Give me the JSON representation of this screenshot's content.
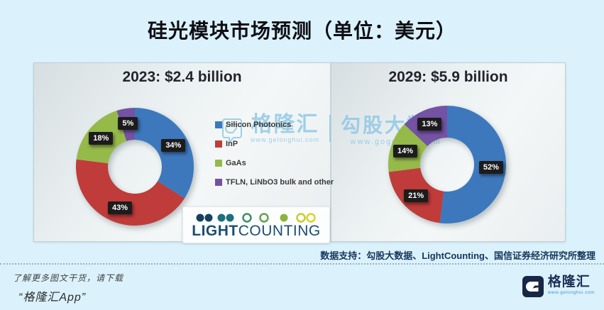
{
  "page": {
    "title": "硅光模块市场预测（单位：美元）",
    "footer_source": "数据支持：勾股大数据、LightCounting、国信证券经济研究所整理",
    "promo_line1": "了解更多图文干货，请下载",
    "promo_line2": "“格隆汇App”"
  },
  "brand": {
    "name": "格隆汇",
    "url": "www.gelonghui.com"
  },
  "watermark": {
    "gelonghui_name": "格隆汇",
    "gelonghui_url": "www.gelonghui.com",
    "gogudata_name": "勾股大数据",
    "gogudata_url": "www.gogudata.com"
  },
  "lightcounting": {
    "light": "LIGHT",
    "counting": "COUNTING"
  },
  "legend": {
    "items": [
      {
        "label": "Silicon Photonics",
        "color": "#3d78bd"
      },
      {
        "label": "InP",
        "color": "#bf3c3a"
      },
      {
        "label": "GaAs",
        "color": "#96ba4a"
      },
      {
        "label": "TFLN, LiNbO3 bulk and other",
        "color": "#7452a4"
      }
    ]
  },
  "chart_data": [
    {
      "type": "pie",
      "subtype": "donut",
      "title": "2023: $2.4 billion",
      "total": "$2.4 billion",
      "year": "2023",
      "categories": [
        "Silicon Photonics",
        "InP",
        "GaAs",
        "TFLN, LiNbO3 bulk and other"
      ],
      "values": [
        34,
        43,
        18,
        5
      ],
      "unit": "%",
      "colors": [
        "#3d78bd",
        "#bf3c3a",
        "#96ba4a",
        "#7452a4"
      ],
      "legend_position": "right-of-chart",
      "labels": [
        "34%",
        "43%",
        "18%",
        "5%"
      ]
    },
    {
      "type": "pie",
      "subtype": "donut",
      "title": "2029: $5.9 billion",
      "total": "$5.9 billion",
      "year": "2029",
      "categories": [
        "Silicon Photonics",
        "InP",
        "GaAs",
        "TFLN, LiNbO3 bulk and other"
      ],
      "values": [
        52,
        21,
        14,
        13
      ],
      "unit": "%",
      "colors": [
        "#3d78bd",
        "#bf3c3a",
        "#96ba4a",
        "#7452a4"
      ],
      "legend_position": "shared",
      "labels": [
        "52%",
        "21%",
        "14%",
        "13%"
      ]
    }
  ]
}
